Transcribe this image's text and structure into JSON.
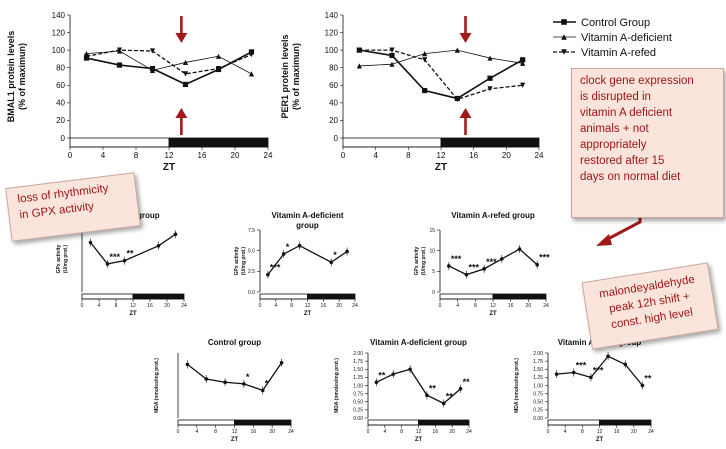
{
  "colors": {
    "line": "#111111",
    "arrow": "#a11a1a",
    "callout_bg": "#fbe4dc",
    "callout_text": "#9b1414"
  },
  "chart_data": [
    {
      "id": "bmal1",
      "type": "line",
      "xlabel": "ZT",
      "ylabel": [
        "BMAL1 protein levels",
        "(% of maximun)"
      ],
      "xlim": [
        0,
        24
      ],
      "ylim": [
        0,
        140
      ],
      "xticks": [
        "0",
        "4",
        "8",
        "12",
        "16",
        "20",
        "24"
      ],
      "yticks": [
        "0",
        "20",
        "40",
        "60",
        "80",
        "100",
        "120",
        "140"
      ],
      "light_dark_bar": {
        "light_to": 12
      },
      "series": [
        {
          "name": "Control Group",
          "style": "solid-square",
          "x": [
            2,
            6,
            10,
            14,
            18,
            22
          ],
          "values": [
            91,
            83,
            79,
            61,
            78,
            98
          ]
        },
        {
          "name": "Vitamin A-deficient",
          "style": "thin-triangle",
          "x": [
            2,
            6,
            10,
            14,
            18,
            22
          ],
          "values": [
            96,
            99,
            77,
            86,
            93,
            73
          ]
        },
        {
          "name": "Vitamin A-refed",
          "style": "dashed-triangle",
          "x": [
            2,
            6,
            10,
            14,
            18,
            22
          ],
          "values": [
            93,
            100,
            99,
            73,
            79,
            95
          ]
        }
      ],
      "arrows": [
        {
          "x": 13.5,
          "dir": "down"
        },
        {
          "x": 13.5,
          "dir": "up"
        }
      ]
    },
    {
      "id": "per1",
      "type": "line",
      "xlabel": "ZT",
      "ylabel": [
        "PER1 protein levels",
        "(% of maximun)"
      ],
      "xlim": [
        0,
        24
      ],
      "ylim": [
        0,
        140
      ],
      "xticks": [
        "0",
        "4",
        "8",
        "12",
        "16",
        "20",
        "24"
      ],
      "yticks": [
        "0",
        "20",
        "40",
        "60",
        "80",
        "100",
        "120",
        "140"
      ],
      "light_dark_bar": {
        "light_to": 12
      },
      "series": [
        {
          "name": "Control Group",
          "style": "solid-square",
          "x": [
            2,
            6,
            10,
            14,
            18,
            22
          ],
          "values": [
            100,
            94,
            54,
            45,
            68,
            89
          ]
        },
        {
          "name": "Vitamin A-deficient",
          "style": "thin-triangle",
          "x": [
            2,
            6,
            10,
            14,
            18,
            22
          ],
          "values": [
            82,
            84,
            96,
            100,
            91,
            85
          ]
        },
        {
          "name": "Vitamin A-refed",
          "style": "dashed-triangle",
          "x": [
            2,
            6,
            10,
            14,
            18,
            22
          ],
          "values": [
            100,
            100,
            89,
            44,
            56,
            60
          ]
        }
      ],
      "arrows": [
        {
          "x": 15,
          "dir": "down"
        },
        {
          "x": 15,
          "dir": "up"
        }
      ]
    },
    {
      "id": "gpx_control",
      "type": "line",
      "title": [
        "Control group"
      ],
      "xlabel": "ZT",
      "ylabel": [
        "GPx activity",
        "(U/mg prot.)"
      ],
      "xlim": [
        0,
        24
      ],
      "ylim": [
        0,
        8
      ],
      "xticks": [
        "0",
        "4",
        "8",
        "12",
        "16",
        "20",
        "24"
      ],
      "yticks": [],
      "light_dark_bar": {
        "light_to": 12
      },
      "x": [
        2,
        6,
        10,
        18,
        22
      ],
      "values": [
        6.0,
        3.4,
        3.8,
        5.6,
        7.0
      ],
      "annotations": [
        {
          "x": 6,
          "text": "***"
        },
        {
          "x": 10,
          "text": "**"
        }
      ]
    },
    {
      "id": "gpx_deficient",
      "type": "line",
      "title": [
        "Vitamin A-deficient",
        "group"
      ],
      "xlabel": "ZT",
      "ylabel": [
        "GPx activity",
        "(U/mg prot.)"
      ],
      "xlim": [
        0,
        24
      ],
      "ylim": [
        0,
        7.5
      ],
      "xticks": [
        "0",
        "4",
        "8",
        "12",
        "16",
        "20",
        "24"
      ],
      "yticks": [
        "0.0",
        "2.5",
        "5.0",
        "7.5"
      ],
      "light_dark_bar": {
        "light_to": 12
      },
      "x": [
        2,
        6,
        10,
        18,
        22
      ],
      "values": [
        2.1,
        4.6,
        5.6,
        3.6,
        4.9
      ],
      "annotations": [
        {
          "x": 2,
          "text": "***"
        },
        {
          "x": 6,
          "text": "*"
        },
        {
          "x": 18,
          "text": "*"
        }
      ]
    },
    {
      "id": "gpx_refed",
      "type": "line",
      "title": [
        "Vitamin A-refed group"
      ],
      "xlabel": "ZT",
      "ylabel": [
        "GPx activity",
        "(U/mg prot.)"
      ],
      "xlim": [
        0,
        24
      ],
      "ylim": [
        0,
        15
      ],
      "xticks": [
        "0",
        "4",
        "8",
        "12",
        "16",
        "20",
        "24"
      ],
      "yticks": [
        "0",
        "5",
        "10",
        "15"
      ],
      "light_dark_bar": {
        "light_to": 12
      },
      "x": [
        2,
        6,
        10,
        14,
        18,
        22
      ],
      "values": [
        6.3,
        4.2,
        5.6,
        8.0,
        10.4,
        6.6
      ],
      "annotations": [
        {
          "x": 2,
          "text": "***"
        },
        {
          "x": 6,
          "text": "***"
        },
        {
          "x": 10,
          "text": "***"
        },
        {
          "x": 22,
          "text": "***"
        }
      ]
    },
    {
      "id": "mda_control",
      "type": "line",
      "title": [
        "Control group"
      ],
      "xlabel": "ZT",
      "ylabel": [
        "MDA (nmoles/mg prot.)"
      ],
      "xlim": [
        0,
        24
      ],
      "ylim": [
        0,
        2.0
      ],
      "xticks": [
        "0",
        "4",
        "8",
        "12",
        "16",
        "20",
        "24"
      ],
      "yticks": [],
      "light_dark_bar": {
        "light_to": 12
      },
      "x": [
        2,
        6,
        10,
        14,
        18,
        22
      ],
      "values": [
        1.65,
        1.2,
        1.1,
        1.05,
        0.85,
        1.7
      ],
      "annotations": [
        {
          "x": 14,
          "text": "*"
        },
        {
          "x": 18,
          "text": "*"
        }
      ]
    },
    {
      "id": "mda_deficient",
      "type": "line",
      "title": [
        "Vitamin A-deficient group"
      ],
      "xlabel": "ZT",
      "ylabel": [
        "MDA (nmoles/mg prot.)"
      ],
      "xlim": [
        0,
        24
      ],
      "ylim": [
        0,
        2.0
      ],
      "xticks": [
        "0",
        "4",
        "8",
        "12",
        "16",
        "20",
        "24"
      ],
      "yticks": [
        "0.00",
        "0.25",
        "0.50",
        "0.75",
        "1.00",
        "1.25",
        "1.50",
        "1.75",
        "2.00"
      ],
      "light_dark_bar": {
        "light_to": 12
      },
      "x": [
        2,
        6,
        10,
        14,
        18,
        22
      ],
      "values": [
        1.1,
        1.35,
        1.5,
        0.7,
        0.45,
        0.9
      ],
      "annotations": [
        {
          "x": 2,
          "text": "**"
        },
        {
          "x": 14,
          "text": "**"
        },
        {
          "x": 18,
          "text": "**"
        },
        {
          "x": 22,
          "text": "**"
        }
      ]
    },
    {
      "id": "mda_refed",
      "type": "line",
      "title": [
        "Vitamin A-refed group"
      ],
      "xlabel": "ZT",
      "ylabel": [
        "MDA (nmoles/mg prot.)"
      ],
      "xlim": [
        0,
        24
      ],
      "ylim": [
        0,
        2.0
      ],
      "xticks": [
        "0",
        "4",
        "8",
        "12",
        "16",
        "20",
        "24"
      ],
      "yticks": [
        "0.00",
        "0.25",
        "0.50",
        "0.75",
        "1.00",
        "1.25",
        "1.50",
        "1.75",
        "2.00"
      ],
      "light_dark_bar": {
        "light_to": 12
      },
      "x": [
        2,
        6,
        10,
        14,
        18,
        22
      ],
      "values": [
        1.35,
        1.4,
        1.25,
        1.9,
        1.65,
        1.0
      ],
      "annotations": [
        {
          "x": 6,
          "text": "***"
        },
        {
          "x": 10,
          "text": "***"
        },
        {
          "x": 22,
          "text": "**"
        }
      ]
    }
  ],
  "legend": [
    {
      "label": "Control Group",
      "style": "solid-square"
    },
    {
      "label": "Vitamin A-deficient",
      "style": "thin-triangle"
    },
    {
      "label": "Vitamin A-refed",
      "style": "dashed-triangle"
    }
  ],
  "callouts": {
    "clock": [
      "clock gene expression",
      "is disrupted in",
      "vitamin A deficient",
      "animals + not",
      "appropriately",
      "restored after 15",
      "days on normal diet"
    ],
    "gpx": [
      "loss of rhythmicity",
      "in GPX activity"
    ],
    "mda": [
      "malondeyaldehyde",
      "peak 12h shift +",
      "const. high level"
    ]
  }
}
